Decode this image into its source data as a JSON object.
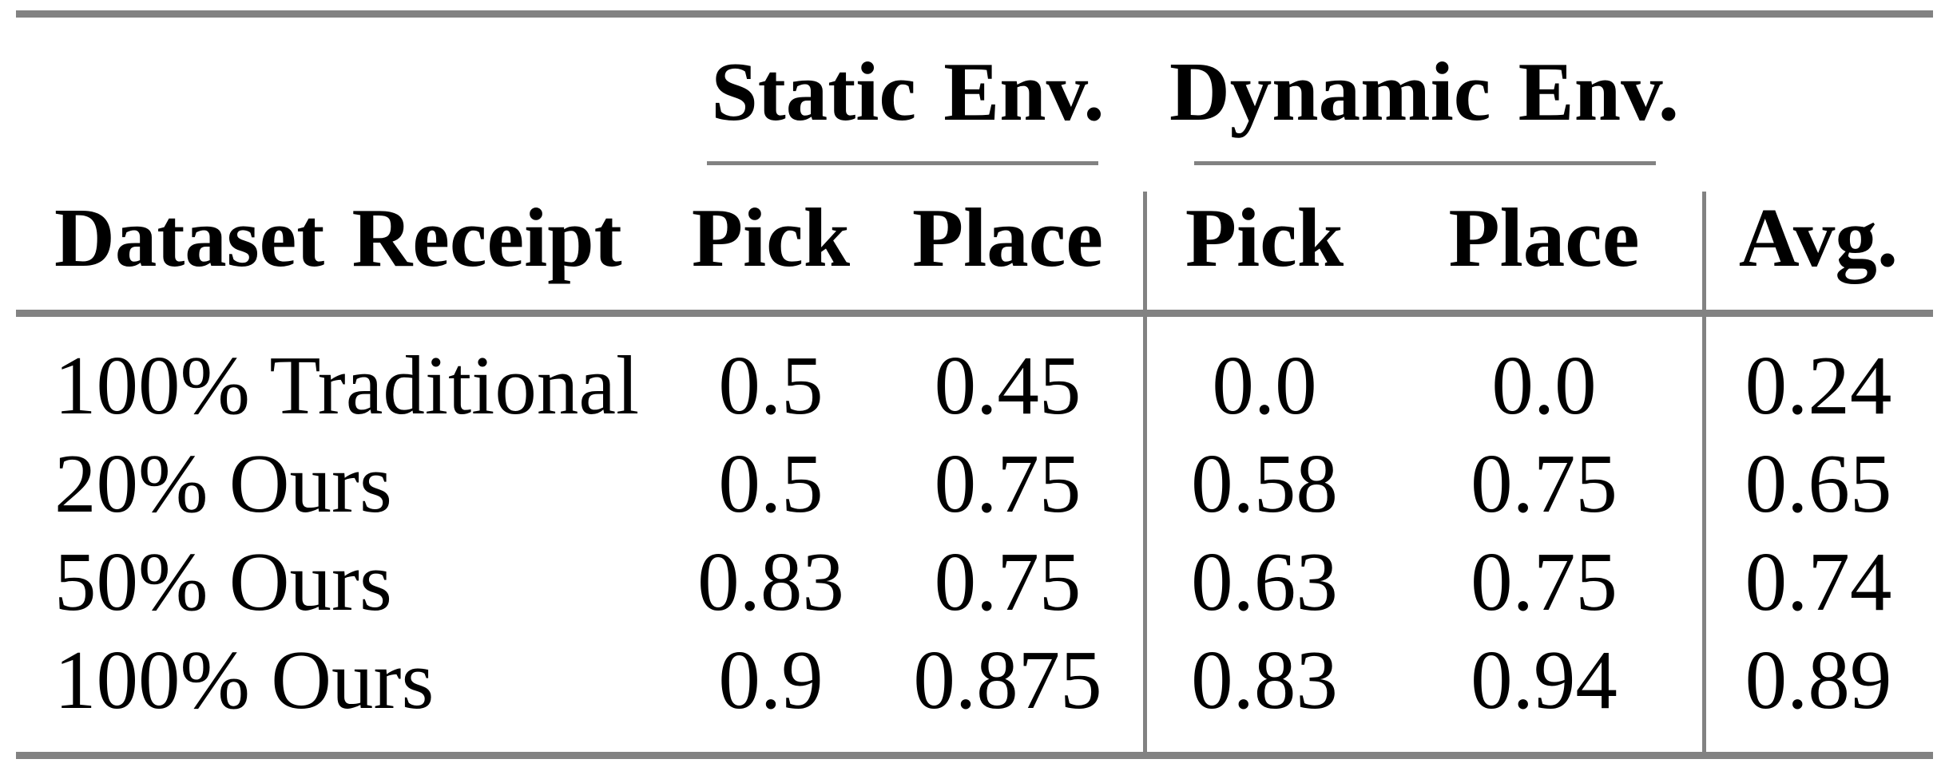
{
  "groups": {
    "static": "Static Env.",
    "dynamic": "Dynamic Env."
  },
  "columns": {
    "label": "Dataset Receipt",
    "s_pick": "Pick",
    "s_place": "Place",
    "d_pick": "Pick",
    "d_place": "Place",
    "avg": "Avg."
  },
  "rows": [
    {
      "label": "100% Traditional",
      "s_pick": "0.5",
      "s_place": "0.45",
      "d_pick": "0.0",
      "d_place": "0.0",
      "avg": "0.24"
    },
    {
      "label": "20% Ours",
      "s_pick": "0.5",
      "s_place": "0.75",
      "d_pick": "0.58",
      "d_place": "0.75",
      "avg": "0.65"
    },
    {
      "label": "50% Ours",
      "s_pick": "0.83",
      "s_place": "0.75",
      "d_pick": "0.63",
      "d_place": "0.75",
      "avg": "0.74"
    },
    {
      "label": "100% Ours",
      "s_pick": "0.9",
      "s_place": "0.875",
      "d_pick": "0.83",
      "d_place": "0.94",
      "avg": "0.89"
    }
  ],
  "colors": {
    "rule": "#828282",
    "text": "#000000",
    "background": "#ffffff"
  },
  "chart_data": {
    "type": "table",
    "column_groups": [
      "Static Env.",
      "Dynamic Env."
    ],
    "columns": [
      "Dataset Receipt",
      "Static Pick",
      "Static Place",
      "Dynamic Pick",
      "Dynamic Place",
      "Avg."
    ],
    "rows": [
      [
        "100% Traditional",
        0.5,
        0.45,
        0.0,
        0.0,
        0.24
      ],
      [
        "20% Ours",
        0.5,
        0.75,
        0.58,
        0.75,
        0.65
      ],
      [
        "50% Ours",
        0.83,
        0.75,
        0.63,
        0.75,
        0.74
      ],
      [
        "100% Ours",
        0.9,
        0.875,
        0.83,
        0.94,
        0.89
      ]
    ]
  }
}
